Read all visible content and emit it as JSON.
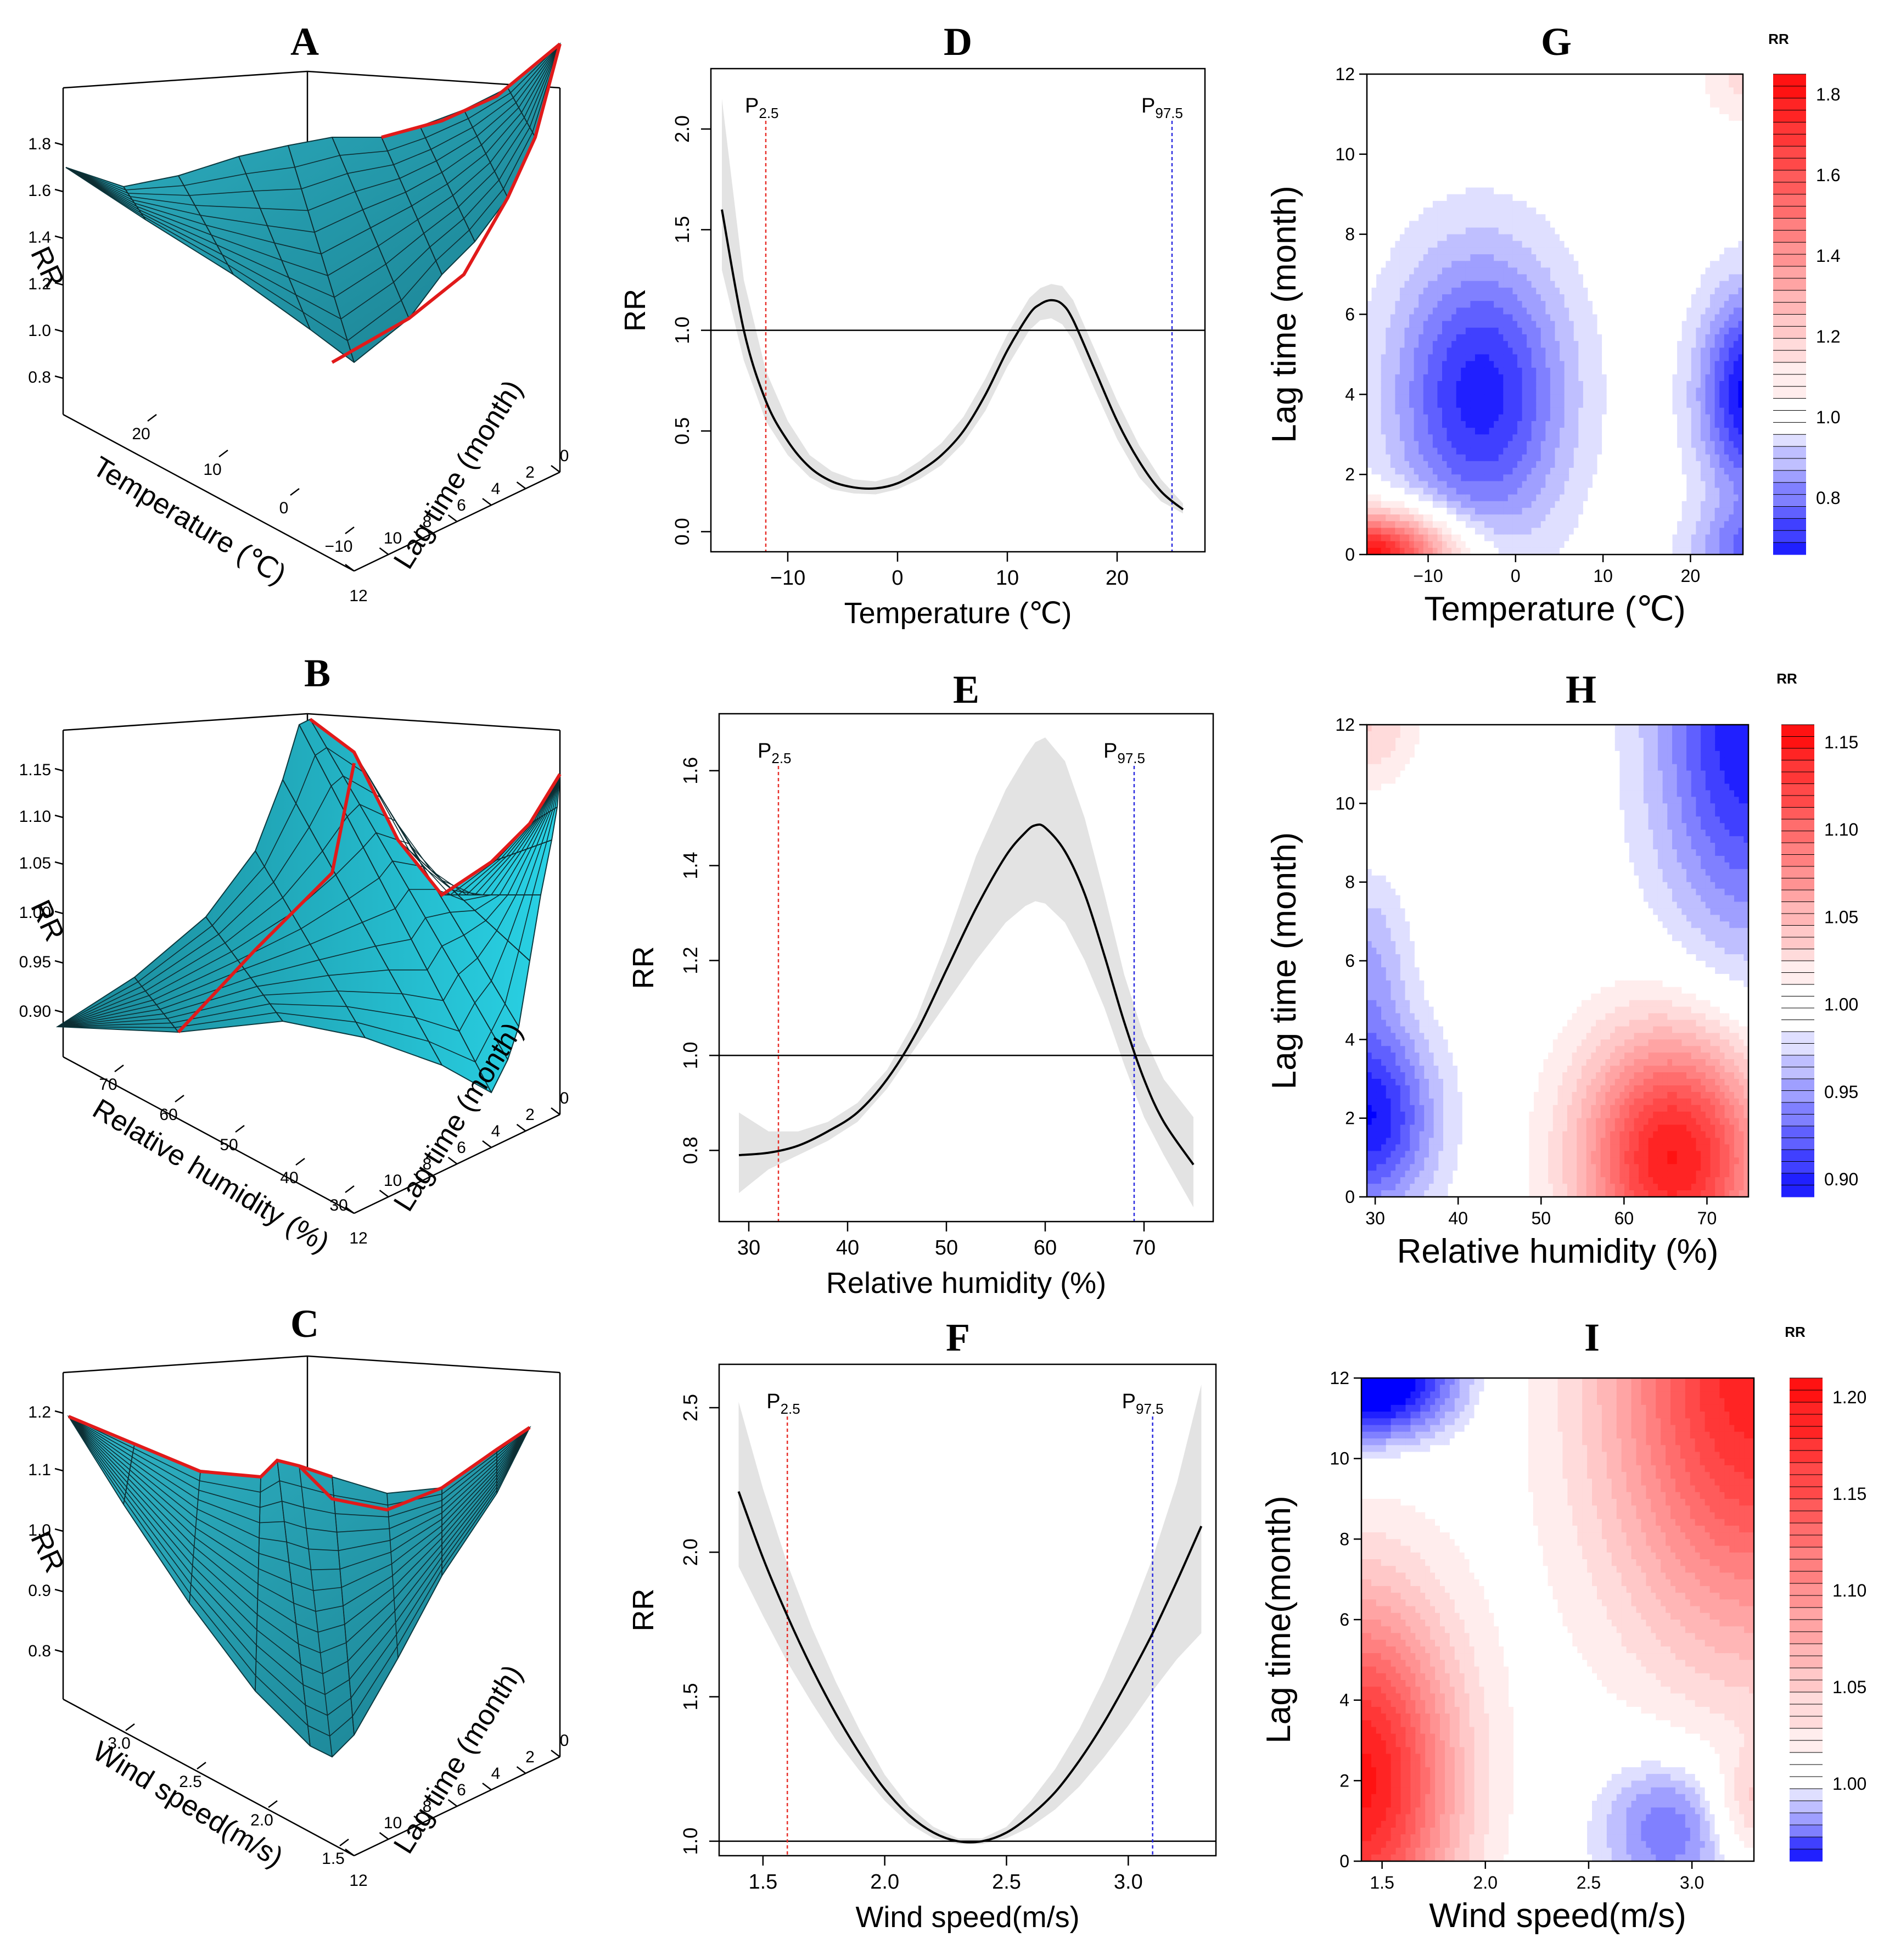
{
  "chart_data": [
    {
      "id": "A",
      "type": "surface3d",
      "letter": "A",
      "zlabel": "RR",
      "xlabel": "Temperature (℃)",
      "ylabel": "Lag time (month)",
      "z_ticks": [
        "0.8",
        "1.0",
        "1.2",
        "1.4",
        "1.6",
        "1.8"
      ],
      "x_ticks": [
        "20",
        "10",
        "0",
        "−10"
      ],
      "y_ticks": [
        "0",
        "2",
        "4",
        "6",
        "8",
        "10",
        "12"
      ],
      "zlim": [
        0.7,
        1.85
      ]
    },
    {
      "id": "B",
      "type": "surface3d",
      "letter": "B",
      "zlabel": "RR",
      "xlabel": "Relative humidity (%)",
      "ylabel": "Lag time (month)",
      "z_ticks": [
        "0.90",
        "0.95",
        "1.00",
        "1.05",
        "1.10",
        "1.15"
      ],
      "x_ticks": [
        "70",
        "60",
        "50",
        "40",
        "30"
      ],
      "y_ticks": [
        "0",
        "2",
        "4",
        "6",
        "8",
        "10",
        "12"
      ],
      "zlim": [
        0.9,
        1.17
      ]
    },
    {
      "id": "C",
      "type": "surface3d",
      "letter": "C",
      "zlabel": "RR",
      "xlabel": "Wind speed(m/s)",
      "ylabel": "Lag time (month)",
      "z_ticks": [
        "0.8",
        "0.9",
        "1.0",
        "1.1",
        "1.2"
      ],
      "x_ticks": [
        "3.0",
        "2.5",
        "2.0",
        "1.5"
      ],
      "y_ticks": [
        "0",
        "2",
        "4",
        "6",
        "8",
        "10",
        "12"
      ],
      "zlim": [
        0.8,
        1.22
      ]
    },
    {
      "id": "D",
      "type": "line",
      "letter": "D",
      "xlabel": "Temperature (℃)",
      "ylabel": "RR",
      "xlim": [
        -17,
        28
      ],
      "ylim": [
        -0.1,
        2.3
      ],
      "x_ticks": [
        -10,
        0,
        10,
        20
      ],
      "x_tick_labels": [
        "−10",
        "0",
        "10",
        "20"
      ],
      "y_ticks": [
        0.0,
        0.5,
        1.0,
        1.5,
        2.0
      ],
      "y_tick_labels": [
        "0.0",
        "0.5",
        "1.0",
        "1.5",
        "2.0"
      ],
      "reference_line": 1.0,
      "percentiles": [
        {
          "label": "P",
          "sub": "2.5",
          "x": -12,
          "color": "#e8302a"
        },
        {
          "label": "P",
          "sub": "97.5",
          "x": 25,
          "color": "#2b2be0"
        }
      ],
      "x": [
        -16,
        -14,
        -12,
        -10,
        -8,
        -6,
        -4,
        -2,
        0,
        2,
        4,
        6,
        8,
        10,
        12,
        13,
        14,
        15,
        16,
        18,
        20,
        22,
        24,
        26
      ],
      "y": [
        1.6,
        1.0,
        0.65,
        0.45,
        0.32,
        0.25,
        0.22,
        0.215,
        0.24,
        0.3,
        0.38,
        0.5,
        0.68,
        0.9,
        1.08,
        1.13,
        1.15,
        1.13,
        1.05,
        0.8,
        0.55,
        0.35,
        0.2,
        0.11
      ],
      "lower": [
        1.3,
        0.85,
        0.55,
        0.38,
        0.27,
        0.21,
        0.19,
        0.185,
        0.21,
        0.26,
        0.33,
        0.44,
        0.6,
        0.82,
        1.0,
        1.05,
        1.06,
        1.03,
        0.95,
        0.7,
        0.46,
        0.27,
        0.15,
        0.09
      ],
      "upper": [
        2.15,
        1.25,
        0.8,
        0.55,
        0.38,
        0.3,
        0.26,
        0.25,
        0.28,
        0.35,
        0.44,
        0.57,
        0.76,
        0.98,
        1.16,
        1.21,
        1.23,
        1.22,
        1.15,
        0.9,
        0.65,
        0.43,
        0.26,
        0.14
      ]
    },
    {
      "id": "E",
      "type": "line",
      "letter": "E",
      "xlabel": "Relative humidity (%)",
      "ylabel": "RR",
      "xlim": [
        27,
        77
      ],
      "ylim": [
        0.65,
        1.72
      ],
      "x_ticks": [
        30,
        40,
        50,
        60,
        70
      ],
      "x_tick_labels": [
        "30",
        "40",
        "50",
        "60",
        "70"
      ],
      "y_ticks": [
        0.8,
        1.0,
        1.2,
        1.4,
        1.6
      ],
      "y_tick_labels": [
        "0.8",
        "1.0",
        "1.2",
        "1.4",
        "1.6"
      ],
      "reference_line": 1.0,
      "percentiles": [
        {
          "label": "P",
          "sub": "2.5",
          "x": 33,
          "color": "#e8302a"
        },
        {
          "label": "P",
          "sub": "97.5",
          "x": 69,
          "color": "#2b2be0"
        }
      ],
      "x": [
        29,
        32,
        35,
        38,
        41,
        44,
        47,
        50,
        53,
        56,
        58,
        59,
        60,
        62,
        64,
        66,
        68,
        70,
        72,
        75
      ],
      "y": [
        0.79,
        0.795,
        0.81,
        0.84,
        0.88,
        0.95,
        1.05,
        1.18,
        1.31,
        1.42,
        1.47,
        1.485,
        1.48,
        1.43,
        1.34,
        1.21,
        1.07,
        0.95,
        0.86,
        0.77
      ],
      "lower": [
        0.71,
        0.76,
        0.79,
        0.82,
        0.86,
        0.93,
        1.02,
        1.11,
        1.2,
        1.28,
        1.315,
        1.325,
        1.32,
        1.28,
        1.2,
        1.1,
        0.98,
        0.87,
        0.79,
        0.68
      ],
      "upper": [
        0.88,
        0.84,
        0.84,
        0.86,
        0.9,
        0.97,
        1.08,
        1.24,
        1.42,
        1.56,
        1.63,
        1.66,
        1.67,
        1.62,
        1.5,
        1.34,
        1.17,
        1.04,
        0.95,
        0.87
      ]
    },
    {
      "id": "F",
      "type": "line",
      "letter": "F",
      "xlabel": "Wind speed(m/s)",
      "ylabel": "RR",
      "xlim": [
        1.32,
        3.36
      ],
      "ylim": [
        0.95,
        2.65
      ],
      "x_ticks": [
        1.5,
        2.0,
        2.5,
        3.0
      ],
      "x_tick_labels": [
        "1.5",
        "2.0",
        "2.5",
        "3.0"
      ],
      "y_ticks": [
        1.0,
        1.5,
        2.0,
        2.5
      ],
      "y_tick_labels": [
        "1.0",
        "1.5",
        "2.0",
        "2.5"
      ],
      "reference_line": 1.0,
      "percentiles": [
        {
          "label": "P",
          "sub": "2.5",
          "x": 1.6,
          "color": "#e8302a"
        },
        {
          "label": "P",
          "sub": "97.5",
          "x": 3.1,
          "color": "#2b2be0"
        }
      ],
      "x": [
        1.4,
        1.5,
        1.6,
        1.7,
        1.8,
        1.9,
        2.0,
        2.1,
        2.2,
        2.3,
        2.4,
        2.5,
        2.6,
        2.7,
        2.8,
        2.9,
        3.0,
        3.1,
        3.2,
        3.3
      ],
      "y": [
        2.21,
        1.98,
        1.78,
        1.6,
        1.44,
        1.3,
        1.18,
        1.09,
        1.03,
        1.0,
        1.0,
        1.03,
        1.09,
        1.17,
        1.28,
        1.41,
        1.56,
        1.72,
        1.9,
        2.09
      ],
      "lower": [
        1.95,
        1.78,
        1.62,
        1.48,
        1.35,
        1.24,
        1.14,
        1.06,
        1.01,
        0.99,
        0.99,
        1.01,
        1.05,
        1.11,
        1.19,
        1.29,
        1.4,
        1.52,
        1.63,
        1.72
      ],
      "upper": [
        2.52,
        2.22,
        1.96,
        1.74,
        1.55,
        1.38,
        1.23,
        1.12,
        1.05,
        1.01,
        1.01,
        1.05,
        1.14,
        1.25,
        1.39,
        1.56,
        1.76,
        1.98,
        2.24,
        2.58
      ]
    },
    {
      "id": "G",
      "type": "heatmap",
      "letter": "G",
      "xlabel": "Temperature (℃)",
      "ylabel": "Lag time (month)",
      "xlim": [
        -17,
        26
      ],
      "ylim": [
        0,
        12
      ],
      "x_ticks": [
        -10,
        0,
        10,
        20
      ],
      "x_tick_labels": [
        "−10",
        "0",
        "10",
        "20"
      ],
      "y_ticks": [
        0,
        2,
        4,
        6,
        8,
        10,
        12
      ],
      "y_tick_labels": [
        "0",
        "2",
        "4",
        "6",
        "8",
        "10",
        "12"
      ],
      "legend_title": "RR",
      "legend_range": [
        0.66,
        1.85
      ],
      "legend_ticks": [
        0.8,
        1.0,
        1.2,
        1.4,
        1.6,
        1.8
      ],
      "legend_tick_labels": [
        "0.8",
        "1.0",
        "1.2",
        "1.4",
        "1.6",
        "1.8"
      ],
      "features": [
        {
          "x": -4,
          "y": 4,
          "sx": 10,
          "sy": 3.6,
          "amp": -0.32
        },
        {
          "x": 27,
          "y": 4,
          "sx": 6,
          "sy": 2.6,
          "amp": -0.36
        },
        {
          "x": 27,
          "y": 0,
          "sx": 7,
          "sy": 1.2,
          "amp": -0.2
        },
        {
          "x": -17,
          "y": 0,
          "sx": 9,
          "sy": 1.0,
          "amp": 0.85
        },
        {
          "x": 26,
          "y": 12,
          "sx": 5,
          "sy": 1.3,
          "amp": 0.14
        },
        {
          "x": -17,
          "y": 12,
          "sx": 4,
          "sy": 1.5,
          "amp": 0.05
        }
      ]
    },
    {
      "id": "H",
      "type": "heatmap",
      "letter": "H",
      "xlabel": "Relative humidity (%)",
      "ylabel": "Lag time (month)",
      "xlim": [
        29,
        75
      ],
      "ylim": [
        0,
        12
      ],
      "x_ticks": [
        30,
        40,
        50,
        60,
        70
      ],
      "x_tick_labels": [
        "30",
        "40",
        "50",
        "60",
        "70"
      ],
      "y_ticks": [
        0,
        2,
        4,
        6,
        8,
        10,
        12
      ],
      "y_tick_labels": [
        "0",
        "2",
        "4",
        "6",
        "8",
        "10",
        "12"
      ],
      "legend_title": "RR",
      "legend_range": [
        0.89,
        1.16
      ],
      "legend_ticks": [
        0.9,
        0.95,
        1.0,
        1.05,
        1.1,
        1.15
      ],
      "legend_tick_labels": [
        "0.90",
        "0.95",
        "1.00",
        "1.05",
        "1.10",
        "1.15"
      ],
      "features": [
        {
          "x": 66,
          "y": 1,
          "sx": 11,
          "sy": 3.2,
          "amp": 0.15
        },
        {
          "x": 29,
          "y": 2,
          "sx": 8,
          "sy": 2.4,
          "amp": -0.11
        },
        {
          "x": 29,
          "y": 6,
          "sx": 5,
          "sy": 2.2,
          "amp": -0.04
        },
        {
          "x": 75,
          "y": 12,
          "sx": 11,
          "sy": 5.5,
          "amp": -0.11
        },
        {
          "x": 29,
          "y": 12,
          "sx": 6,
          "sy": 1.6,
          "amp": 0.035
        }
      ]
    },
    {
      "id": "I",
      "type": "heatmap",
      "letter": "I",
      "xlabel": "Wind speed(m/s)",
      "ylabel": "Lag time(month)",
      "xlim": [
        1.4,
        3.3
      ],
      "ylim": [
        0,
        12
      ],
      "x_ticks": [
        1.5,
        2.0,
        2.5,
        3.0
      ],
      "x_tick_labels": [
        "1.5",
        "2.0",
        "2.5",
        "3.0"
      ],
      "y_ticks": [
        0,
        2,
        4,
        6,
        8,
        10,
        12
      ],
      "y_tick_labels": [
        "0",
        "2",
        "4",
        "6",
        "8",
        "10",
        "12"
      ],
      "legend_title": "RR",
      "legend_range": [
        0.96,
        1.21
      ],
      "legend_ticks": [
        1.0,
        1.05,
        1.1,
        1.15,
        1.2
      ],
      "legend_tick_labels": [
        "1.00",
        "1.05",
        "1.10",
        "1.15",
        "1.20"
      ],
      "features": [
        {
          "x": 1.4,
          "y": 2,
          "sx": 0.45,
          "sy": 4.5,
          "amp": 0.2
        },
        {
          "x": 3.3,
          "y": 12,
          "sx": 0.7,
          "sy": 6.5,
          "amp": 0.19
        },
        {
          "x": 1.4,
          "y": 12,
          "sx": 0.45,
          "sy": 1.6,
          "amp": -0.06
        },
        {
          "x": 2.9,
          "y": 1,
          "sx": 0.35,
          "sy": 2.2,
          "amp": -0.03
        },
        {
          "x": 3.3,
          "y": 1.5,
          "sx": 0.15,
          "sy": 1.2,
          "amp": 0.04
        }
      ]
    }
  ]
}
